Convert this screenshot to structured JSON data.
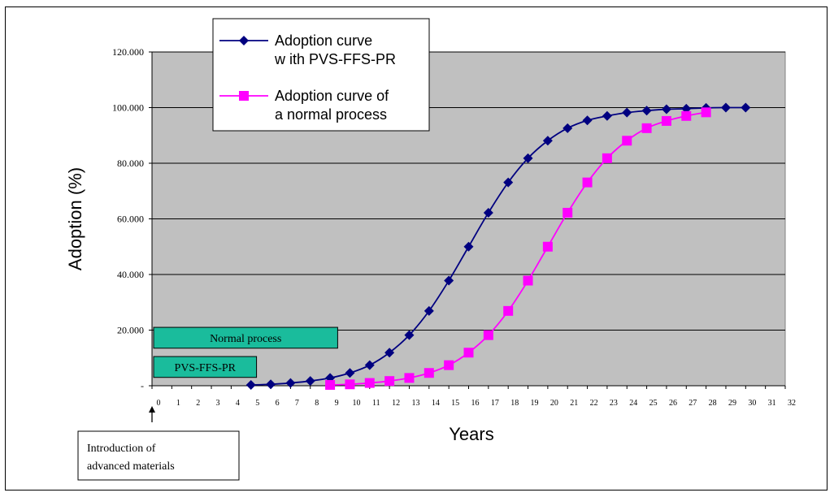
{
  "chart_data": {
    "type": "line",
    "xlabel": "Years",
    "ylabel": "Adoption (%)",
    "xlim": [
      0,
      32
    ],
    "ylim": [
      0,
      120
    ],
    "grid": "horizontal",
    "legend_position": "top-left inside plot",
    "plot_background": "#c0c0c0",
    "x_ticks": [
      "0",
      "1",
      "2",
      "3",
      "4",
      "5",
      "6",
      "7",
      "8",
      "9",
      "10",
      "11",
      "12",
      "13",
      "14",
      "15",
      "16",
      "17",
      "18",
      "19",
      "20",
      "21",
      "22",
      "23",
      "24",
      "25",
      "26",
      "27",
      "28",
      "29",
      "30",
      "31",
      "32"
    ],
    "y_ticks": [
      "-",
      "20.000",
      "40.000",
      "60.000",
      "80.000",
      "100.000",
      "120.000"
    ],
    "series": [
      {
        "name": "Adoption curve with PVS-FFS-PR",
        "legend_lines": [
          "Adoption curve",
          "w ith PVS-FFS-PR"
        ],
        "color": "#000080",
        "marker": "diamond",
        "x": [
          5,
          6,
          7,
          8,
          9,
          10,
          11,
          12,
          13,
          14,
          15,
          16,
          17,
          18,
          19,
          20,
          21,
          22,
          23,
          24,
          25,
          26,
          27,
          28,
          29,
          30
        ],
        "values": [
          0.3,
          0.5,
          1.0,
          1.7,
          2.8,
          4.6,
          7.4,
          11.9,
          18.2,
          26.9,
          37.8,
          50.0,
          62.2,
          73.1,
          81.8,
          88.1,
          92.6,
          95.4,
          97.0,
          98.2,
          98.9,
          99.4,
          99.6,
          99.9,
          100.0,
          100.0
        ]
      },
      {
        "name": "Adoption curve of a normal process",
        "legend_lines": [
          "Adoption curve of",
          "a normal process"
        ],
        "color": "#ff00ff",
        "marker": "square",
        "x": [
          9,
          10,
          11,
          12,
          13,
          14,
          15,
          16,
          17,
          18,
          19,
          20,
          21,
          22,
          23,
          24,
          25,
          26,
          27,
          28
        ],
        "values": [
          0.3,
          0.5,
          1.0,
          1.7,
          2.8,
          4.6,
          7.4,
          11.9,
          18.2,
          26.9,
          37.8,
          50.0,
          62.2,
          73.1,
          81.8,
          88.1,
          92.6,
          95.2,
          97.0,
          98.3
        ]
      }
    ],
    "annotations": {
      "normal_process": {
        "label": "Normal process",
        "x_start": 0,
        "x_end": 9.3,
        "y_low": 13.5,
        "y_high": 21
      },
      "pvs_ffs_pr": {
        "label": "PVS-FFS-PR",
        "x_start": 0,
        "x_end": 5.2,
        "y_low": 3,
        "y_high": 10.5
      },
      "introduction": {
        "lines": [
          "Introduction of",
          "advanced materials"
        ],
        "arrow_x": 0
      }
    }
  }
}
